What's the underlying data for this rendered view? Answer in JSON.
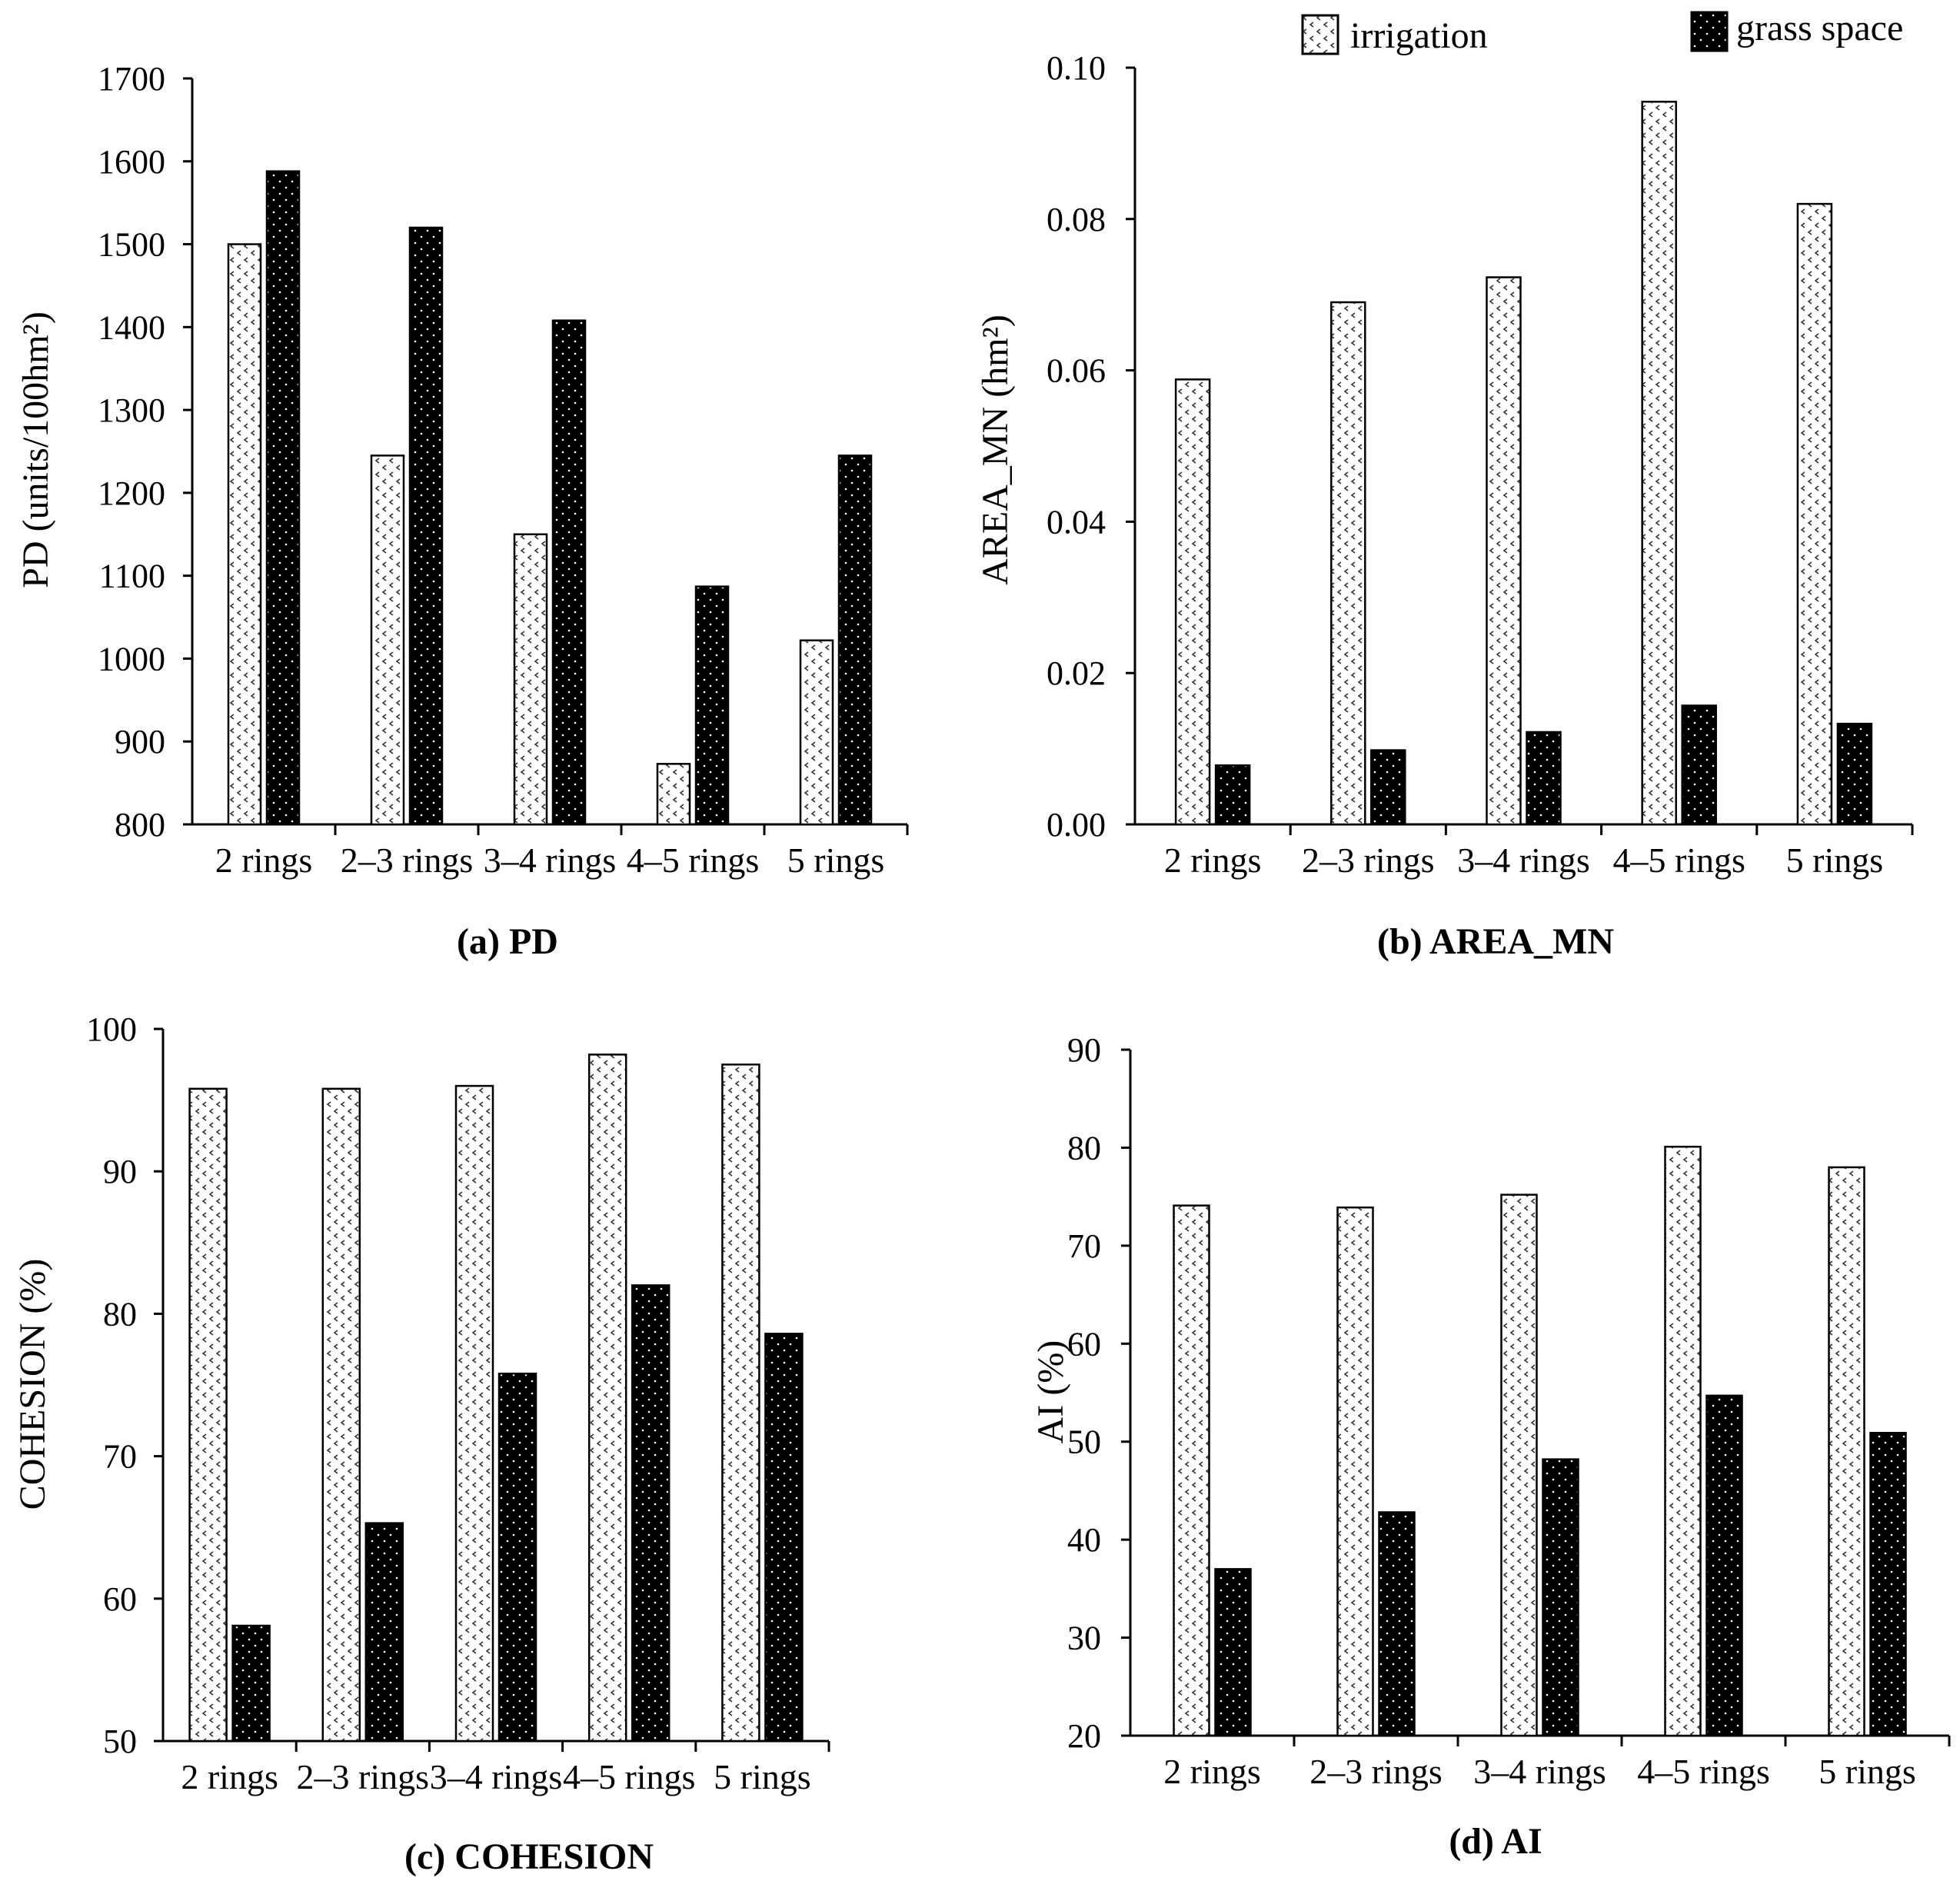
{
  "legend": {
    "irrigation_label": "irrigation",
    "grass_label": "grass space"
  },
  "colors": {
    "irrigation_fill": "#ffffff",
    "irrigation_marks": "#333333",
    "grass_fill": "#000000",
    "grass_marks": "#ffffff",
    "axis": "#000000"
  },
  "chart_data": [
    {
      "id": "pd",
      "type": "bar",
      "caption": "(a) PD",
      "ylabel": "PD (units/100hm²)",
      "categories": [
        "2 rings",
        "2–3 rings",
        "3–4 rings",
        "4–5 rings",
        "5 rings"
      ],
      "ylim": [
        800,
        1700
      ],
      "yticks": [
        "800",
        "900",
        "1000",
        "1100",
        "1200",
        "1300",
        "1400",
        "1500",
        "1600",
        "1700"
      ],
      "series": [
        {
          "name": "irrigation",
          "values": [
            1500,
            1245,
            1150,
            873,
            1022
          ]
        },
        {
          "name": "grass space",
          "values": [
            1588,
            1520,
            1408,
            1087,
            1245
          ]
        }
      ]
    },
    {
      "id": "area_mn",
      "type": "bar",
      "caption": "(b) AREA_MN",
      "ylabel": "AREA_MN (hm²)",
      "categories": [
        "2 rings",
        "2–3 rings",
        "3–4 rings",
        "4–5 rings",
        "5 rings"
      ],
      "ylim": [
        0,
        0.1
      ],
      "yticks": [
        "0.00",
        "0.02",
        "0.04",
        "0.06",
        "0.08",
        "0.10"
      ],
      "series": [
        {
          "name": "irrigation",
          "values": [
            0.0588,
            0.069,
            0.0723,
            0.0955,
            0.082
          ]
        },
        {
          "name": "grass space",
          "values": [
            0.0078,
            0.0098,
            0.0122,
            0.0157,
            0.0133
          ]
        }
      ]
    },
    {
      "id": "cohesion",
      "type": "bar",
      "caption": "(c) COHESION",
      "ylabel": "COHESION (%)",
      "categories": [
        "2 rings",
        "2–3 rings",
        "3–4 rings",
        "4–5 rings",
        "5 rings"
      ],
      "ylim": [
        50,
        100
      ],
      "yticks": [
        "50",
        "60",
        "70",
        "80",
        "90",
        "100"
      ],
      "series": [
        {
          "name": "irrigation",
          "values": [
            95.8,
            95.8,
            96.0,
            98.2,
            97.5
          ]
        },
        {
          "name": "grass space",
          "values": [
            58.1,
            65.3,
            75.8,
            82.0,
            78.6
          ]
        }
      ]
    },
    {
      "id": "ai",
      "type": "bar",
      "caption": "(d) AI",
      "ylabel": "AI (%)",
      "categories": [
        "2 rings",
        "2–3 rings",
        "3–4 rings",
        "4–5 rings",
        "5 rings"
      ],
      "ylim": [
        20,
        90
      ],
      "yticks": [
        "20",
        "30",
        "40",
        "50",
        "60",
        "70",
        "80",
        "90"
      ],
      "series": [
        {
          "name": "irrigation",
          "values": [
            74.1,
            73.9,
            75.2,
            80.1,
            78.0
          ]
        },
        {
          "name": "grass space",
          "values": [
            37.0,
            42.8,
            48.2,
            54.7,
            50.9
          ]
        }
      ]
    }
  ]
}
